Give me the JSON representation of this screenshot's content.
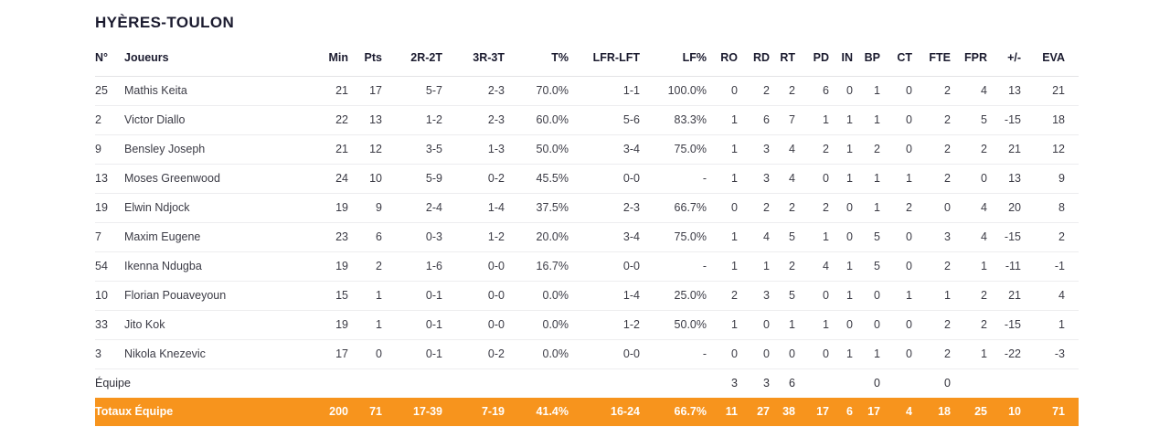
{
  "page": {
    "title": "HYÈRES-TOULON"
  },
  "colors": {
    "accent": "#F7941D",
    "player_name": "#F99C3F"
  },
  "table": {
    "columns": [
      {
        "key": "num",
        "label": "N°"
      },
      {
        "key": "name",
        "label": "Joueurs"
      },
      {
        "key": "min",
        "label": "Min"
      },
      {
        "key": "pts",
        "label": "Pts"
      },
      {
        "key": "r2",
        "label": "2R-2T"
      },
      {
        "key": "r3",
        "label": "3R-3T"
      },
      {
        "key": "tp",
        "label": "T%"
      },
      {
        "key": "lf",
        "label": "LFR-LFT"
      },
      {
        "key": "lfp",
        "label": "LF%"
      },
      {
        "key": "ro",
        "label": "RO"
      },
      {
        "key": "rd",
        "label": "RD"
      },
      {
        "key": "rt",
        "label": "RT"
      },
      {
        "key": "pd",
        "label": "PD"
      },
      {
        "key": "in",
        "label": "IN"
      },
      {
        "key": "bp",
        "label": "BP"
      },
      {
        "key": "ct",
        "label": "CT"
      },
      {
        "key": "fte",
        "label": "FTE"
      },
      {
        "key": "fpr",
        "label": "FPR"
      },
      {
        "key": "pm",
        "label": "+/-"
      },
      {
        "key": "eva",
        "label": "EVA"
      }
    ],
    "players": [
      {
        "num": "25",
        "name": "Mathis Keita",
        "min": "21",
        "pts": "17",
        "r2": "5-7",
        "r3": "2-3",
        "tp": "70.0%",
        "lf": "1-1",
        "lfp": "100.0%",
        "ro": "0",
        "rd": "2",
        "rt": "2",
        "pd": "6",
        "in": "0",
        "bp": "1",
        "ct": "0",
        "fte": "2",
        "fpr": "4",
        "pm": "13",
        "eva": "21"
      },
      {
        "num": "2",
        "name": "Victor Diallo",
        "min": "22",
        "pts": "13",
        "r2": "1-2",
        "r3": "2-3",
        "tp": "60.0%",
        "lf": "5-6",
        "lfp": "83.3%",
        "ro": "1",
        "rd": "6",
        "rt": "7",
        "pd": "1",
        "in": "1",
        "bp": "1",
        "ct": "0",
        "fte": "2",
        "fpr": "5",
        "pm": "-15",
        "eva": "18"
      },
      {
        "num": "9",
        "name": "Bensley Joseph",
        "min": "21",
        "pts": "12",
        "r2": "3-5",
        "r3": "1-3",
        "tp": "50.0%",
        "lf": "3-4",
        "lfp": "75.0%",
        "ro": "1",
        "rd": "3",
        "rt": "4",
        "pd": "2",
        "in": "1",
        "bp": "2",
        "ct": "0",
        "fte": "2",
        "fpr": "2",
        "pm": "21",
        "eva": "12"
      },
      {
        "num": "13",
        "name": "Moses Greenwood",
        "min": "24",
        "pts": "10",
        "r2": "5-9",
        "r3": "0-2",
        "tp": "45.5%",
        "lf": "0-0",
        "lfp": "-",
        "ro": "1",
        "rd": "3",
        "rt": "4",
        "pd": "0",
        "in": "1",
        "bp": "1",
        "ct": "1",
        "fte": "2",
        "fpr": "0",
        "pm": "13",
        "eva": "9"
      },
      {
        "num": "19",
        "name": "Elwin Ndjock",
        "min": "19",
        "pts": "9",
        "r2": "2-4",
        "r3": "1-4",
        "tp": "37.5%",
        "lf": "2-3",
        "lfp": "66.7%",
        "ro": "0",
        "rd": "2",
        "rt": "2",
        "pd": "2",
        "in": "0",
        "bp": "1",
        "ct": "2",
        "fte": "0",
        "fpr": "4",
        "pm": "20",
        "eva": "8"
      },
      {
        "num": "7",
        "name": "Maxim Eugene",
        "min": "23",
        "pts": "6",
        "r2": "0-3",
        "r3": "1-2",
        "tp": "20.0%",
        "lf": "3-4",
        "lfp": "75.0%",
        "ro": "1",
        "rd": "4",
        "rt": "5",
        "pd": "1",
        "in": "0",
        "bp": "5",
        "ct": "0",
        "fte": "3",
        "fpr": "4",
        "pm": "-15",
        "eva": "2"
      },
      {
        "num": "54",
        "name": "Ikenna Ndugba",
        "min": "19",
        "pts": "2",
        "r2": "1-6",
        "r3": "0-0",
        "tp": "16.7%",
        "lf": "0-0",
        "lfp": "-",
        "ro": "1",
        "rd": "1",
        "rt": "2",
        "pd": "4",
        "in": "1",
        "bp": "5",
        "ct": "0",
        "fte": "2",
        "fpr": "1",
        "pm": "-11",
        "eva": "-1"
      },
      {
        "num": "10",
        "name": "Florian Pouaveyoun",
        "min": "15",
        "pts": "1",
        "r2": "0-1",
        "r3": "0-0",
        "tp": "0.0%",
        "lf": "1-4",
        "lfp": "25.0%",
        "ro": "2",
        "rd": "3",
        "rt": "5",
        "pd": "0",
        "in": "1",
        "bp": "0",
        "ct": "1",
        "fte": "1",
        "fpr": "2",
        "pm": "21",
        "eva": "4"
      },
      {
        "num": "33",
        "name": "Jito Kok",
        "min": "19",
        "pts": "1",
        "r2": "0-1",
        "r3": "0-0",
        "tp": "0.0%",
        "lf": "1-2",
        "lfp": "50.0%",
        "ro": "1",
        "rd": "0",
        "rt": "1",
        "pd": "1",
        "in": "0",
        "bp": "0",
        "ct": "0",
        "fte": "2",
        "fpr": "2",
        "pm": "-15",
        "eva": "1"
      },
      {
        "num": "3",
        "name": "Nikola Knezevic",
        "min": "17",
        "pts": "0",
        "r2": "0-1",
        "r3": "0-2",
        "tp": "0.0%",
        "lf": "0-0",
        "lfp": "-",
        "ro": "0",
        "rd": "0",
        "rt": "0",
        "pd": "0",
        "in": "1",
        "bp": "1",
        "ct": "0",
        "fte": "2",
        "fpr": "1",
        "pm": "-22",
        "eva": "-3"
      }
    ],
    "team_row": {
      "label": "Équipe",
      "ro": "3",
      "rd": "3",
      "rt": "6",
      "bp": "0",
      "fte": "0"
    },
    "totals_row": {
      "label": "Totaux Équipe",
      "min": "200",
      "pts": "71",
      "r2": "17-39",
      "r3": "7-19",
      "tp": "41.4%",
      "lf": "16-24",
      "lfp": "66.7%",
      "ro": "11",
      "rd": "27",
      "rt": "38",
      "pd": "17",
      "in": "6",
      "bp": "17",
      "ct": "4",
      "fte": "18",
      "fpr": "25",
      "pm": "10",
      "eva": "71"
    }
  }
}
